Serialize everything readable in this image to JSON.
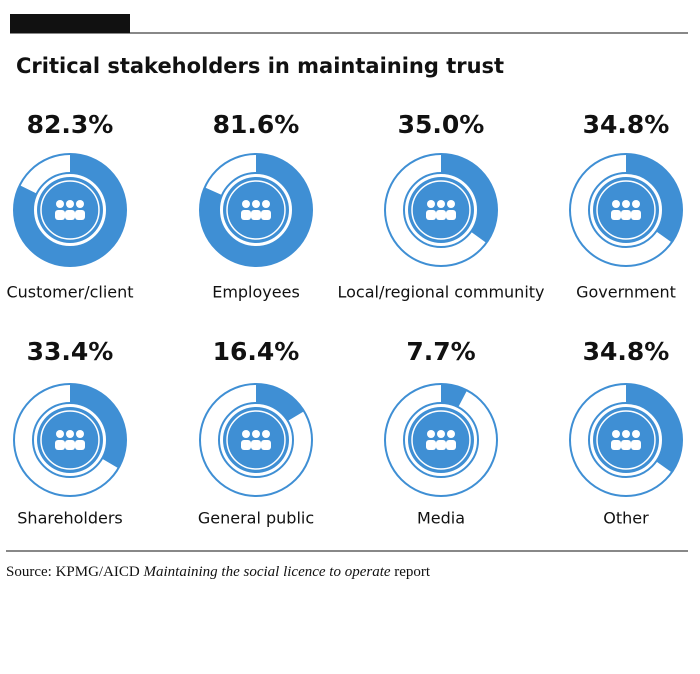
{
  "chart_data": {
    "type": "donut",
    "title": "Critical stakeholders in maintaining trust",
    "categories": [
      "Customer/client",
      "Employees",
      "Local/regional community",
      "Government",
      "Shareholders",
      "General public",
      "Media",
      "Other"
    ],
    "values": [
      82.3,
      81.6,
      35.0,
      34.8,
      33.4,
      16.4,
      7.7,
      34.8
    ],
    "value_labels": [
      "82.3%",
      "81.6%",
      "35.0%",
      "34.8%",
      "33.4%",
      "16.4%",
      "7.7%",
      "34.8%"
    ],
    "color": "#3f8fd4",
    "source": {
      "prefix": "Source: KPMG/AICD",
      "title": "Maintaining the social licence to operate",
      "suffix": "report"
    }
  }
}
